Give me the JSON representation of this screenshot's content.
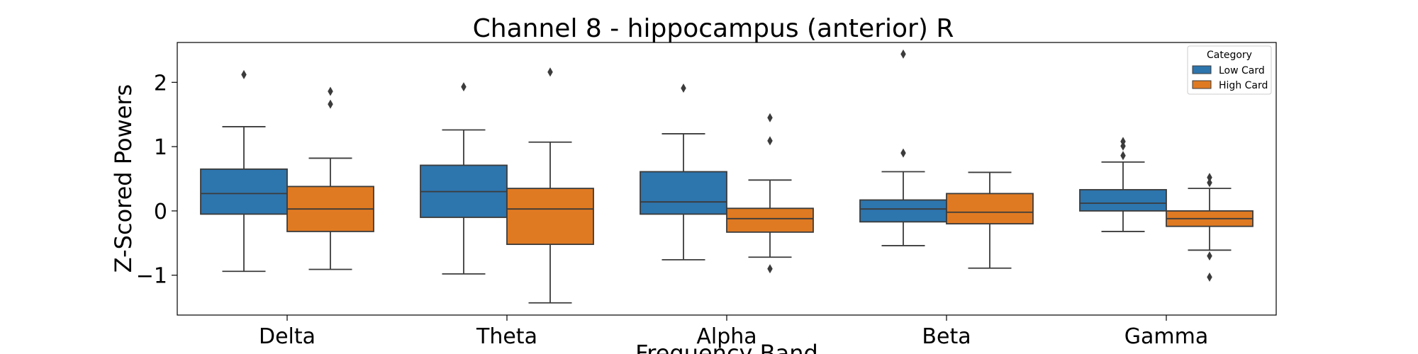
{
  "chart_data": {
    "type": "boxplot",
    "title": "Channel 8 - hippocampus (anterior) R",
    "xlabel": "Frequency Band",
    "ylabel": "Z-Scored Powers",
    "categories": [
      "Delta",
      "Theta",
      "Alpha",
      "Beta",
      "Gamma"
    ],
    "yticks": [
      -1,
      0,
      1,
      2
    ],
    "yticklabels": [
      "−1",
      "0",
      "1",
      "2"
    ],
    "ylim": [
      -1.62,
      2.62
    ],
    "legend": {
      "title": "Category",
      "position": "top-right"
    },
    "colors": {
      "Low Card": "#2d75ad",
      "High Card": "#e07a22",
      "line": "#3b3b3b"
    },
    "series": [
      {
        "name": "Low Card",
        "boxes": [
          {
            "q1": -0.05,
            "median": 0.27,
            "q3": 0.65,
            "whislo": -0.94,
            "whishi": 1.31,
            "fliers": [
              2.12
            ]
          },
          {
            "q1": -0.1,
            "median": 0.3,
            "q3": 0.71,
            "whislo": -0.98,
            "whishi": 1.26,
            "fliers": [
              1.93
            ]
          },
          {
            "q1": -0.05,
            "median": 0.14,
            "q3": 0.61,
            "whislo": -0.76,
            "whishi": 1.2,
            "fliers": [
              1.91
            ]
          },
          {
            "q1": -0.17,
            "median": 0.03,
            "q3": 0.17,
            "whislo": -0.54,
            "whishi": 0.61,
            "fliers": [
              0.9,
              2.44
            ]
          },
          {
            "q1": 0.0,
            "median": 0.12,
            "q3": 0.33,
            "whislo": -0.32,
            "whishi": 0.76,
            "fliers": [
              0.86,
              1.01,
              1.08
            ]
          }
        ]
      },
      {
        "name": "High Card",
        "boxes": [
          {
            "q1": -0.32,
            "median": 0.03,
            "q3": 0.38,
            "whislo": -0.91,
            "whishi": 0.82,
            "fliers": [
              1.66,
              1.86
            ]
          },
          {
            "q1": -0.52,
            "median": 0.03,
            "q3": 0.35,
            "whislo": -1.43,
            "whishi": 1.07,
            "fliers": [
              2.16
            ]
          },
          {
            "q1": -0.33,
            "median": -0.12,
            "q3": 0.04,
            "whislo": -0.72,
            "whishi": 0.48,
            "fliers": [
              -0.9,
              1.09,
              1.45
            ]
          },
          {
            "q1": -0.2,
            "median": -0.02,
            "q3": 0.27,
            "whislo": -0.89,
            "whishi": 0.6,
            "fliers": []
          },
          {
            "q1": -0.24,
            "median": -0.12,
            "q3": 0.0,
            "whislo": -0.61,
            "whishi": 0.35,
            "fliers": [
              -1.03,
              -0.7,
              0.44,
              0.52
            ]
          }
        ]
      }
    ]
  }
}
